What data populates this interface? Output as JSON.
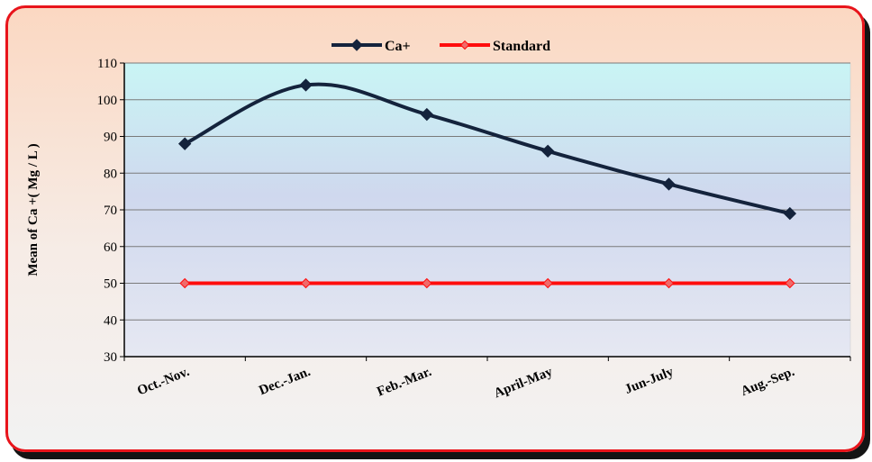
{
  "chart_data": {
    "type": "line",
    "title": "",
    "xlabel": "",
    "ylabel": "Mean of  Ca +(  Mg / L  )",
    "categories": [
      "Oct.-Nov.",
      "Dec.-Jan.",
      "Feb.-Mar.",
      "April-May",
      "Jun-July",
      "Aug.-Sep."
    ],
    "ylim": [
      30,
      110
    ],
    "yticks": [
      30,
      40,
      50,
      60,
      70,
      80,
      90,
      100,
      110
    ],
    "grid": true,
    "legend_position": "top",
    "series": [
      {
        "name": "Ca+",
        "values": [
          88,
          104,
          96,
          86,
          77,
          69
        ],
        "color": "#14233c",
        "smooth": true
      },
      {
        "name": "Standard",
        "values": [
          50,
          50,
          50,
          50,
          50,
          50
        ],
        "color": "#ff0d0d",
        "smooth": false
      }
    ]
  },
  "colors": {
    "frame_border": "#e8141b",
    "plot_top": "#c9f5f5",
    "plot_bottom": "#e4e7f2",
    "grid": "#7a7a7a"
  }
}
